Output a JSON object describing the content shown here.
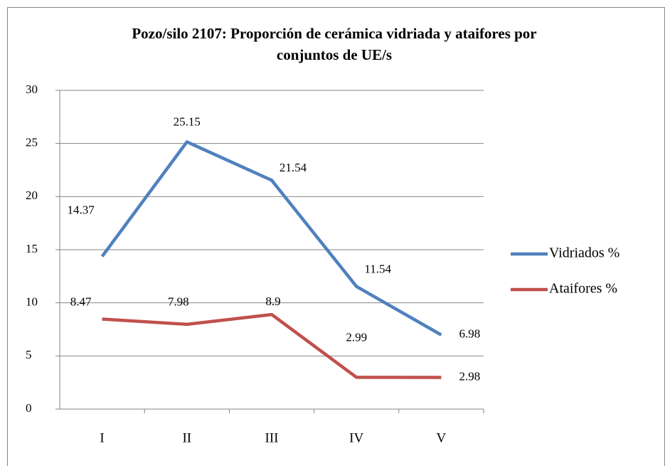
{
  "chart_data": {
    "type": "line",
    "title": "Pozo/silo 2107: Proporción de cerámica vidriada y ataifores por conjuntos de UE/s",
    "categories": [
      "I",
      "II",
      "III",
      "IV",
      "V"
    ],
    "series": [
      {
        "name": "Vidriados %",
        "color": "#4f81bd",
        "values": [
          14.37,
          25.15,
          21.54,
          11.54,
          6.98
        ]
      },
      {
        "name": "Ataifores %",
        "color": "#c0504d",
        "values": [
          8.47,
          7.98,
          8.9,
          2.99,
          2.98
        ]
      }
    ],
    "ylim": [
      0,
      30
    ],
    "yticks": [
      0,
      5,
      10,
      15,
      20,
      25,
      30
    ],
    "grid": true,
    "legend": "right"
  }
}
